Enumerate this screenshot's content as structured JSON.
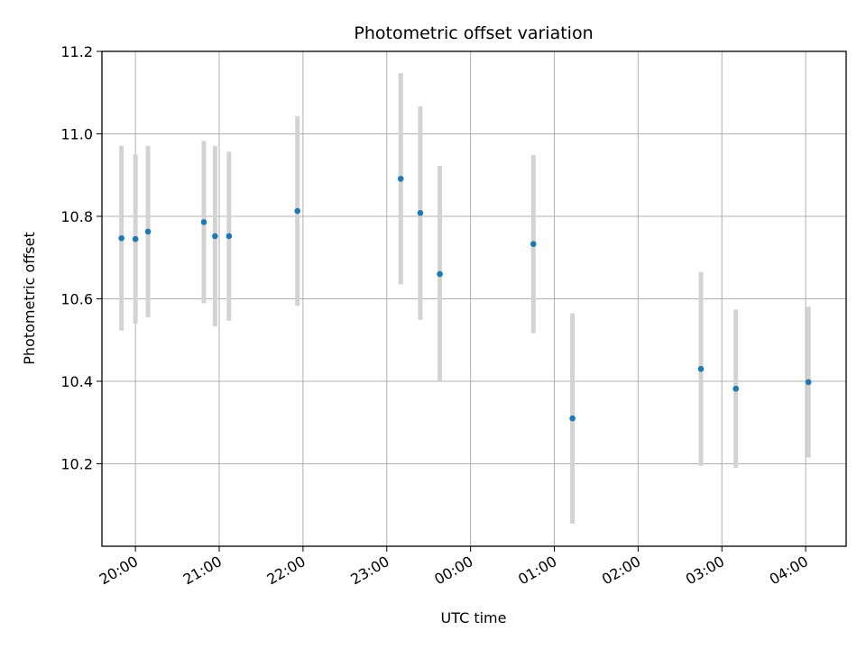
{
  "chart_data": {
    "type": "scatter",
    "title": "Photometric offset variation",
    "xlabel": "UTC time",
    "ylabel": "Photometric offset",
    "x_ticks": [
      "20:00",
      "21:00",
      "22:00",
      "23:00",
      "00:00",
      "01:00",
      "02:00",
      "03:00",
      "04:00"
    ],
    "y_ticks": [
      "10.2",
      "10.4",
      "10.6",
      "10.8",
      "11.0",
      "11.2"
    ],
    "xlim": [
      "19:36",
      "04:29"
    ],
    "ylim": [
      10.0,
      11.2
    ],
    "grid": true,
    "marker_color": "#1f77b4",
    "errorbar_color": "#d3d3d3",
    "points": [
      {
        "time": "19:50",
        "y": 10.747,
        "err": 0.224
      },
      {
        "time": "20:00",
        "y": 10.745,
        "err": 0.205
      },
      {
        "time": "20:09",
        "y": 10.763,
        "err": 0.208
      },
      {
        "time": "20:49",
        "y": 10.786,
        "err": 0.197
      },
      {
        "time": "20:57",
        "y": 10.752,
        "err": 0.219
      },
      {
        "time": "21:07",
        "y": 10.752,
        "err": 0.205
      },
      {
        "time": "21:56",
        "y": 10.813,
        "err": 0.23
      },
      {
        "time": "23:10",
        "y": 10.891,
        "err": 0.256
      },
      {
        "time": "23:24",
        "y": 10.808,
        "err": 0.259
      },
      {
        "time": "23:38",
        "y": 10.66,
        "err": 0.262
      },
      {
        "time": "00:45",
        "y": 10.733,
        "err": 0.216
      },
      {
        "time": "01:13",
        "y": 10.31,
        "err": 0.255
      },
      {
        "time": "02:45",
        "y": 10.43,
        "err": 0.235
      },
      {
        "time": "03:10",
        "y": 10.382,
        "err": 0.192
      },
      {
        "time": "04:02",
        "y": 10.398,
        "err": 0.183
      }
    ]
  }
}
